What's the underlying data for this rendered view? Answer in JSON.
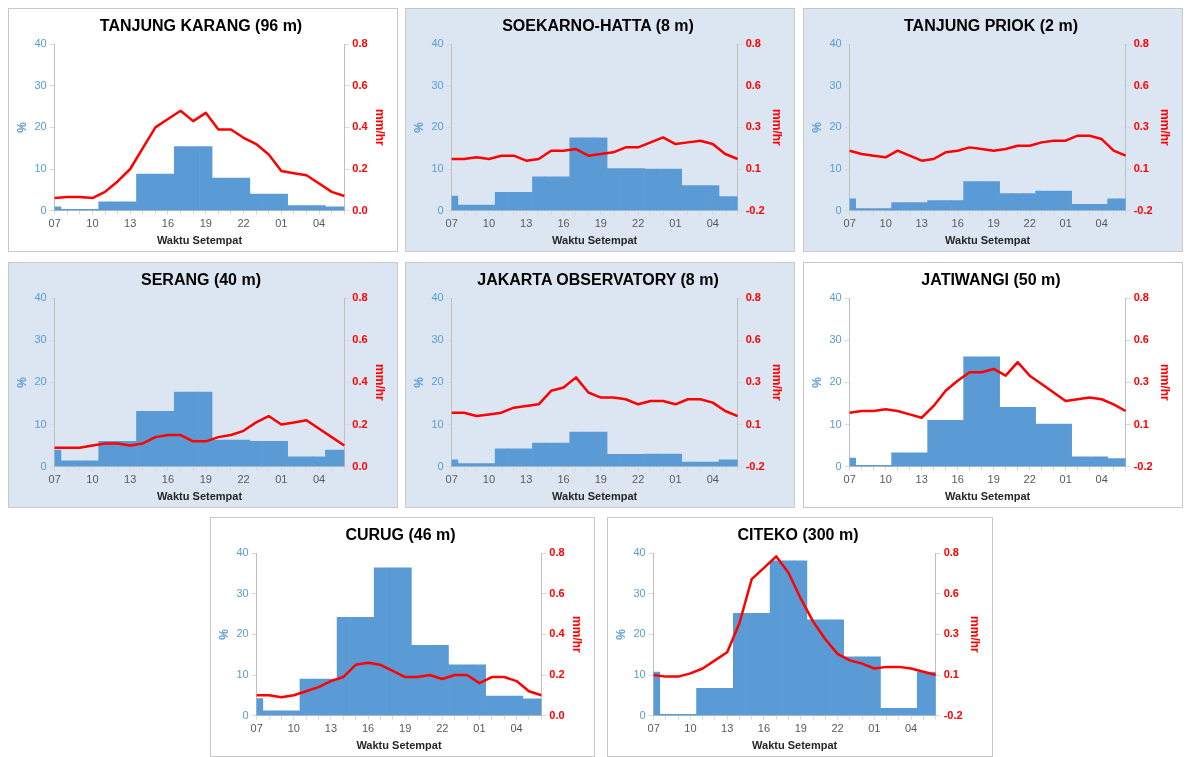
{
  "chart_data": [
    {
      "type": "bar",
      "title": "TANJUNG KARANG (96 m)",
      "xlabel": "Waktu Setempat",
      "ylabel": "%",
      "y2label": "mm/hr",
      "categories": [
        "07",
        null,
        null,
        "10",
        null,
        null,
        "13",
        null,
        null,
        "16",
        null,
        null,
        "19",
        null,
        null,
        "22",
        null,
        null,
        "01",
        null,
        null,
        "04",
        null,
        null
      ],
      "ylim": [
        0,
        40
      ],
      "yticks": [
        0,
        10,
        20,
        30,
        40
      ],
      "y2lim": [
        0,
        0.8
      ],
      "y2ticks": [
        {
          "value": 0,
          "label": "0.0"
        },
        0.2,
        0.4,
        0.6,
        0.8
      ],
      "grid": false,
      "legend": false,
      "series": [
        {
          "color": "#5b9bd5",
          "values": [
            0.9,
            0.3,
            0.3,
            0.3,
            2.1,
            2.1,
            2.1,
            8.8,
            8.8,
            8.8,
            15.4,
            15.4,
            15.4,
            7.8,
            7.8,
            7.8,
            4.0,
            4.0,
            4.0,
            1.2,
            1.2,
            1.2,
            0.9,
            0.9
          ]
        },
        {
          "type": "line",
          "color": "#ff0000",
          "axis": "y2",
          "values": [
            0.06,
            0.065,
            0.065,
            0.06,
            0.09,
            0.14,
            0.2,
            0.3,
            0.4,
            0.44,
            0.48,
            0.43,
            0.47,
            0.39,
            0.39,
            0.35,
            0.32,
            0.27,
            0.19,
            0.18,
            0.17,
            0.13,
            0.09,
            0.07
          ]
        }
      ]
    },
    {
      "type": "bar",
      "title": "SOEKARNO-HATTA (8 m)",
      "xlabel": "Waktu Setempat",
      "ylabel": "%",
      "y2label": "mm/hr",
      "categories": [
        "07",
        null,
        null,
        "10",
        null,
        null,
        "13",
        null,
        null,
        "16",
        null,
        null,
        "19",
        null,
        null,
        "22",
        null,
        null,
        "01",
        null,
        null,
        "04",
        null,
        null
      ],
      "ylim": [
        0,
        40
      ],
      "yticks": [
        0,
        10,
        20,
        30,
        40
      ],
      "y2lim": [
        -0.2,
        0.8
      ],
      "y2ticks": [
        -0.2,
        {
          "value": 0.05,
          "label": "0.1"
        },
        0.3,
        {
          "value": 0.55,
          "label": "0.6"
        },
        0.8
      ],
      "grid": false,
      "legend": false,
      "series": [
        {
          "color": "#5b9bd5",
          "values": [
            3.5,
            1.3,
            1.3,
            1.3,
            4.4,
            4.4,
            4.4,
            8.1,
            8.1,
            8.1,
            17.5,
            17.5,
            17.5,
            10.1,
            10.1,
            10.1,
            10.0,
            10.0,
            10.0,
            6.0,
            6.0,
            6.0,
            3.4,
            3.4
          ]
        },
        {
          "type": "line",
          "color": "#ff0000",
          "axis": "y2",
          "values": [
            0.11,
            0.11,
            0.12,
            0.11,
            0.13,
            0.13,
            0.1,
            0.11,
            0.16,
            0.16,
            0.17,
            0.13,
            0.14,
            0.15,
            0.18,
            0.18,
            0.21,
            0.24,
            0.2,
            0.21,
            0.22,
            0.2,
            0.14,
            0.11
          ]
        }
      ]
    },
    {
      "type": "bar",
      "title": "TANJUNG PRIOK (2 m)",
      "xlabel": "Waktu Setempat",
      "ylabel": "%",
      "y2label": "mm/hr",
      "categories": [
        "07",
        null,
        null,
        "10",
        null,
        null,
        "13",
        null,
        null,
        "16",
        null,
        null,
        "19",
        null,
        null,
        "22",
        null,
        null,
        "01",
        null,
        null,
        "04",
        null,
        null
      ],
      "ylim": [
        0,
        40
      ],
      "yticks": [
        0,
        10,
        20,
        30,
        40
      ],
      "y2lim": [
        -0.2,
        0.8
      ],
      "y2ticks": [
        -0.2,
        {
          "value": 0.05,
          "label": "0.1"
        },
        0.3,
        {
          "value": 0.55,
          "label": "0.6"
        },
        0.8
      ],
      "grid": false,
      "legend": false,
      "series": [
        {
          "color": "#5b9bd5",
          "values": [
            2.8,
            0.5,
            0.5,
            0.5,
            1.9,
            1.9,
            1.9,
            2.4,
            2.4,
            2.4,
            7.0,
            7.0,
            7.0,
            4.1,
            4.1,
            4.1,
            4.7,
            4.7,
            4.7,
            1.5,
            1.5,
            1.5,
            2.8,
            2.8
          ]
        },
        {
          "type": "line",
          "color": "#ff0000",
          "axis": "y2",
          "values": [
            0.16,
            0.14,
            0.13,
            0.12,
            0.16,
            0.13,
            0.1,
            0.11,
            0.15,
            0.16,
            0.18,
            0.17,
            0.16,
            0.17,
            0.19,
            0.19,
            0.21,
            0.22,
            0.22,
            0.25,
            0.25,
            0.23,
            0.16,
            0.13
          ]
        }
      ]
    },
    {
      "type": "bar",
      "title": "SERANG (40 m)",
      "xlabel": "Waktu Setempat",
      "ylabel": "%",
      "y2label": "mm/hr",
      "categories": [
        "07",
        null,
        null,
        "10",
        null,
        null,
        "13",
        null,
        null,
        "16",
        null,
        null,
        "19",
        null,
        null,
        "22",
        null,
        null,
        "01",
        null,
        null,
        "04",
        null,
        null
      ],
      "ylim": [
        0,
        40
      ],
      "yticks": [
        0,
        10,
        20,
        30,
        40
      ],
      "y2lim": [
        0,
        0.8
      ],
      "y2ticks": [
        {
          "value": 0,
          "label": "0.0"
        },
        0.2,
        0.4,
        0.6,
        0.8
      ],
      "grid": false,
      "legend": false,
      "series": [
        {
          "color": "#5b9bd5",
          "values": [
            3.9,
            1.4,
            1.4,
            1.4,
            6.0,
            6.0,
            6.0,
            13.1,
            13.1,
            13.1,
            17.7,
            17.7,
            17.7,
            6.3,
            6.3,
            6.3,
            6.0,
            6.0,
            6.0,
            2.3,
            2.3,
            2.3,
            3.9,
            3.9
          ]
        },
        {
          "type": "line",
          "color": "#ff0000",
          "axis": "y2",
          "values": [
            0.09,
            0.09,
            0.09,
            0.1,
            0.11,
            0.11,
            0.1,
            0.11,
            0.14,
            0.15,
            0.15,
            0.12,
            0.12,
            0.14,
            0.15,
            0.17,
            0.21,
            0.24,
            0.2,
            0.21,
            0.22,
            0.18,
            0.14,
            0.1
          ]
        }
      ]
    },
    {
      "type": "bar",
      "title": "JAKARTA OBSERVATORY (8 m)",
      "xlabel": "Waktu Setempat",
      "ylabel": "%",
      "y2label": "mm/hr",
      "categories": [
        "07",
        null,
        null,
        "10",
        null,
        null,
        "13",
        null,
        null,
        "16",
        null,
        null,
        "19",
        null,
        null,
        "22",
        null,
        null,
        "01",
        null,
        null,
        "04",
        null,
        null
      ],
      "ylim": [
        0,
        40
      ],
      "yticks": [
        0,
        10,
        20,
        30,
        40
      ],
      "y2lim": [
        -0.2,
        0.8
      ],
      "y2ticks": [
        -0.2,
        {
          "value": 0.05,
          "label": "0.1"
        },
        0.3,
        {
          "value": 0.55,
          "label": "0.6"
        },
        0.8
      ],
      "grid": false,
      "legend": false,
      "series": [
        {
          "color": "#5b9bd5",
          "values": [
            1.6,
            0.7,
            0.7,
            0.7,
            4.2,
            4.2,
            4.2,
            5.6,
            5.6,
            5.6,
            8.2,
            8.2,
            8.2,
            2.9,
            2.9,
            2.9,
            3.0,
            3.0,
            3.0,
            1.1,
            1.1,
            1.1,
            1.6,
            1.6
          ]
        },
        {
          "type": "line",
          "color": "#ff0000",
          "axis": "y2",
          "values": [
            0.12,
            0.12,
            0.1,
            0.11,
            0.12,
            0.15,
            0.16,
            0.17,
            0.25,
            0.27,
            0.33,
            0.24,
            0.21,
            0.21,
            0.2,
            0.17,
            0.19,
            0.19,
            0.17,
            0.2,
            0.2,
            0.18,
            0.13,
            0.1
          ]
        }
      ]
    },
    {
      "type": "bar",
      "title": "JATIWANGI (50 m)",
      "xlabel": "Waktu Setempat",
      "ylabel": "%",
      "y2label": "mm/hr",
      "categories": [
        "07",
        null,
        null,
        "10",
        null,
        null,
        "13",
        null,
        null,
        "16",
        null,
        null,
        "19",
        null,
        null,
        "22",
        null,
        null,
        "01",
        null,
        null,
        "04",
        null,
        null
      ],
      "ylim": [
        0,
        40
      ],
      "yticks": [
        0,
        10,
        20,
        30,
        40
      ],
      "y2lim": [
        -0.2,
        0.8
      ],
      "y2ticks": [
        -0.2,
        {
          "value": 0.05,
          "label": "0.1"
        },
        0.3,
        {
          "value": 0.55,
          "label": "0.6"
        },
        0.8
      ],
      "grid": false,
      "legend": false,
      "series": [
        {
          "color": "#5b9bd5",
          "values": [
            2.0,
            0.3,
            0.3,
            0.3,
            3.3,
            3.3,
            3.3,
            11.0,
            11.0,
            11.0,
            26.1,
            26.1,
            26.1,
            14.1,
            14.1,
            14.1,
            10.1,
            10.1,
            10.1,
            2.3,
            2.3,
            2.3,
            1.9,
            1.9
          ]
        },
        {
          "type": "line",
          "color": "#ff0000",
          "axis": "y2",
          "values": [
            0.12,
            0.13,
            0.13,
            0.14,
            0.13,
            0.11,
            0.09,
            0.16,
            0.25,
            0.31,
            0.36,
            0.36,
            0.38,
            0.34,
            0.42,
            0.34,
            0.29,
            0.24,
            0.19,
            0.2,
            0.21,
            0.2,
            0.17,
            0.13
          ]
        }
      ]
    },
    {
      "type": "bar",
      "title": "CURUG (46 m)",
      "xlabel": "Waktu Setempat",
      "ylabel": "%",
      "y2label": "mm/hr",
      "categories": [
        "07",
        null,
        null,
        "10",
        null,
        null,
        "13",
        null,
        null,
        "16",
        null,
        null,
        "19",
        null,
        null,
        "22",
        null,
        null,
        "01",
        null,
        null,
        "04",
        null,
        null
      ],
      "ylim": [
        0,
        40
      ],
      "yticks": [
        0,
        10,
        20,
        30,
        40
      ],
      "y2lim": [
        0,
        0.8
      ],
      "y2ticks": [
        {
          "value": 0,
          "label": "0.0"
        },
        0.2,
        0.4,
        0.6,
        0.8
      ],
      "grid": false,
      "legend": false,
      "series": [
        {
          "color": "#5b9bd5",
          "values": [
            4.2,
            1.2,
            1.2,
            1.2,
            9.0,
            9.0,
            9.0,
            24.2,
            24.2,
            24.2,
            36.4,
            36.4,
            36.4,
            17.3,
            17.3,
            17.3,
            12.5,
            12.5,
            12.5,
            4.8,
            4.8,
            4.8,
            4.1,
            4.1
          ]
        },
        {
          "type": "line",
          "color": "#ff0000",
          "axis": "y2",
          "values": [
            0.1,
            0.1,
            0.09,
            0.1,
            0.12,
            0.14,
            0.17,
            0.19,
            0.25,
            0.26,
            0.25,
            0.22,
            0.19,
            0.19,
            0.2,
            0.18,
            0.2,
            0.2,
            0.16,
            0.19,
            0.19,
            0.17,
            0.12,
            0.1
          ]
        }
      ]
    },
    {
      "type": "bar",
      "title": "CITEKO (300 m)",
      "xlabel": "Waktu Setempat",
      "ylabel": "%",
      "y2label": "mm/hr",
      "categories": [
        "07",
        null,
        null,
        "10",
        null,
        null,
        "13",
        null,
        null,
        "16",
        null,
        null,
        "19",
        null,
        null,
        "22",
        null,
        null,
        "01",
        null,
        null,
        "04",
        null,
        null
      ],
      "ylim": [
        0,
        40
      ],
      "yticks": [
        0,
        10,
        20,
        30,
        40
      ],
      "y2lim": [
        -0.2,
        0.8
      ],
      "y2ticks": [
        -0.2,
        {
          "value": 0.05,
          "label": "0.1"
        },
        0.3,
        {
          "value": 0.55,
          "label": "0.6"
        },
        0.8
      ],
      "grid": false,
      "legend": false,
      "series": [
        {
          "color": "#5b9bd5",
          "values": [
            10.7,
            0.3,
            0.3,
            0.3,
            6.7,
            6.7,
            6.7,
            25.2,
            25.2,
            25.2,
            38.1,
            38.1,
            38.1,
            23.6,
            23.6,
            23.6,
            14.5,
            14.5,
            14.5,
            1.8,
            1.8,
            1.8,
            10.7,
            10.7
          ]
        },
        {
          "type": "line",
          "color": "#ff0000",
          "axis": "y2",
          "values": [
            0.05,
            0.04,
            0.04,
            0.06,
            0.09,
            0.14,
            0.19,
            0.37,
            0.64,
            0.71,
            0.78,
            0.68,
            0.52,
            0.38,
            0.27,
            0.18,
            0.14,
            0.12,
            0.09,
            0.1,
            0.1,
            0.09,
            0.07,
            0.05
          ]
        }
      ]
    }
  ]
}
